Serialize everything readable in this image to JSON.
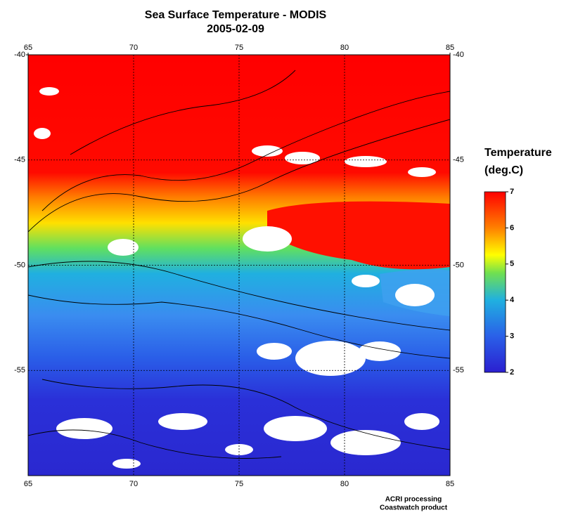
{
  "map": {
    "title": "Sea Surface Temperature - MODIS",
    "subtitle": "2005-02-09",
    "xlim": [
      65,
      85
    ],
    "xticks": [
      65,
      70,
      75,
      80,
      85
    ],
    "ylim": [
      -60,
      -40
    ],
    "yticks": [
      -40,
      -45,
      -50,
      -55
    ],
    "grid": true,
    "colorbar": {
      "title": [
        "Temperature",
        "(deg.C)"
      ],
      "clim": [
        2,
        7
      ],
      "ticks": [
        2,
        3,
        4,
        5,
        6,
        7
      ]
    },
    "credits": [
      "ACRI processing",
      "Coastwatch product"
    ]
  }
}
